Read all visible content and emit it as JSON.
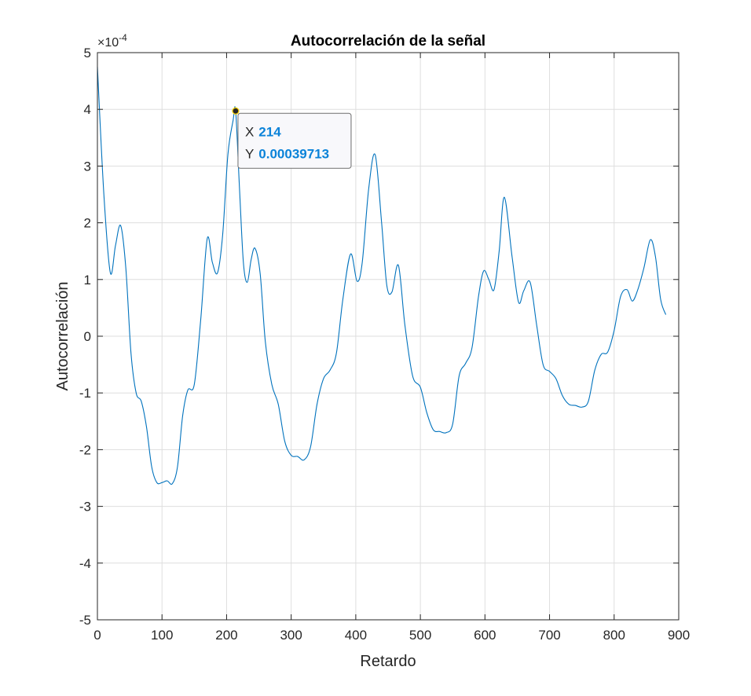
{
  "chart_data": {
    "type": "line",
    "title": "Autocorrelación de la señal",
    "xlabel": "Retardo",
    "ylabel": "Autocorrelación",
    "xlim": [
      0,
      900
    ],
    "ylim": [
      -5,
      5
    ],
    "y_exponent_label": "×10",
    "y_exponent_power": "-4",
    "x_ticks": [
      "0",
      "100",
      "200",
      "300",
      "400",
      "500",
      "600",
      "700",
      "800",
      "900"
    ],
    "y_ticks": [
      "5",
      "4",
      "3",
      "2",
      "1",
      "0",
      "-1",
      "-2",
      "-3",
      "-4",
      "-5"
    ],
    "grid": true,
    "line_color": "#0072bd",
    "series": [
      {
        "x": [
          0,
          10,
          20,
          28,
          36,
          44,
          52,
          60,
          68,
          76,
          84,
          92,
          100,
          108,
          116,
          124,
          132,
          140,
          150,
          160,
          170,
          178,
          186,
          194,
          202,
          210,
          214,
          220,
          226,
          232,
          238,
          244,
          252,
          260,
          270,
          280,
          290,
          300,
          310,
          320,
          330,
          340,
          350,
          360,
          370,
          380,
          392,
          402,
          410,
          420,
          430,
          440,
          448,
          456,
          466,
          476,
          488,
          500,
          510,
          520,
          530,
          540,
          550,
          560,
          570,
          580,
          590,
          598,
          606,
          614,
          622,
          630,
          642,
          652,
          660,
          670,
          680,
          690,
          700,
          710,
          720,
          730,
          740,
          750,
          760,
          770,
          780,
          790,
          800,
          810,
          820,
          828,
          836,
          846,
          856,
          864,
          872,
          880
        ],
        "y": [
          4.75,
          2.5,
          1.12,
          1.6,
          1.95,
          1.2,
          -0.3,
          -1.0,
          -1.15,
          -1.6,
          -2.3,
          -2.58,
          -2.58,
          -2.55,
          -2.6,
          -2.3,
          -1.4,
          -0.95,
          -0.85,
          0.3,
          1.72,
          1.3,
          1.12,
          1.8,
          3.2,
          3.8,
          3.97,
          2.6,
          1.3,
          0.95,
          1.35,
          1.55,
          1.1,
          -0.1,
          -0.85,
          -1.2,
          -1.85,
          -2.1,
          -2.12,
          -2.18,
          -1.95,
          -1.2,
          -0.75,
          -0.6,
          -0.3,
          0.65,
          1.45,
          0.97,
          1.3,
          2.6,
          3.2,
          2.0,
          0.9,
          0.78,
          1.25,
          0.2,
          -0.7,
          -0.9,
          -1.35,
          -1.65,
          -1.68,
          -1.7,
          -1.55,
          -0.7,
          -0.48,
          -0.2,
          0.7,
          1.15,
          1.0,
          0.82,
          1.5,
          2.45,
          1.4,
          0.6,
          0.8,
          0.95,
          0.2,
          -0.5,
          -0.62,
          -0.75,
          -1.05,
          -1.2,
          -1.22,
          -1.25,
          -1.15,
          -0.6,
          -0.32,
          -0.28,
          0.1,
          0.7,
          0.82,
          0.62,
          0.8,
          1.2,
          1.7,
          1.4,
          0.65,
          0.38
        ]
      }
    ],
    "datatip": {
      "x_key": "X",
      "x_value": "214",
      "y_key": "Y",
      "y_value": "0.00039713",
      "point_x": 214,
      "point_y": 3.9713
    }
  }
}
